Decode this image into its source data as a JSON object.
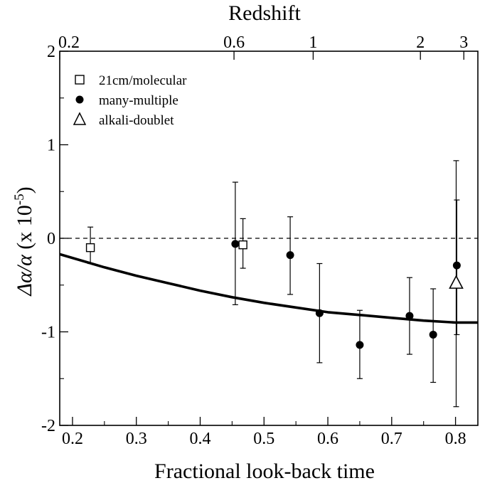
{
  "chart_data": {
    "type": "scatter",
    "title": "",
    "xlabel": "Fractional look-back time",
    "ylabel": "Δα/α (x 10⁻⁵)",
    "ylabel_parts": {
      "delta_alpha": "Δα/α",
      "scale": "(x 10",
      "exponent": "-5",
      "close": ")"
    },
    "top_axis_label": "Redshift",
    "xlim": [
      0.18,
      0.835
    ],
    "ylim": [
      -2,
      2
    ],
    "x_ticks": [
      0.2,
      0.3,
      0.4,
      0.5,
      0.6,
      0.7,
      0.8
    ],
    "x_tick_labels": [
      "0.2",
      "0.3",
      "0.4",
      "0.5",
      "0.6",
      "0.7",
      "0.8"
    ],
    "y_ticks": [
      -2,
      -1,
      0,
      1,
      2
    ],
    "y_tick_labels": [
      "-2",
      "-1",
      "0",
      "1",
      "2"
    ],
    "top_ticks": [
      {
        "label": "0.2",
        "x": 0.18
      },
      {
        "label": "0.6",
        "x": 0.453
      },
      {
        "label": "1",
        "x": 0.577
      },
      {
        "label": "2",
        "x": 0.745
      },
      {
        "label": "3",
        "x": 0.813
      }
    ],
    "zero_line": {
      "y": 0,
      "style": "dashed"
    },
    "grid": false,
    "legend_position": "top-left",
    "series": [
      {
        "name": "21cm/molecular",
        "marker": "open-square",
        "points": [
          {
            "x": 0.228,
            "y": -0.1,
            "yerr_low": -0.27,
            "yerr_high": 0.12
          },
          {
            "x": 0.467,
            "y": -0.07,
            "yerr_low": -0.32,
            "yerr_high": 0.21
          }
        ]
      },
      {
        "name": "many-multiple",
        "marker": "filled-circle",
        "points": [
          {
            "x": 0.455,
            "y": -0.06,
            "yerr_low": -0.71,
            "yerr_high": 0.6
          },
          {
            "x": 0.541,
            "y": -0.18,
            "yerr_low": -0.6,
            "yerr_high": 0.23
          },
          {
            "x": 0.587,
            "y": -0.8,
            "yerr_low": -1.33,
            "yerr_high": -0.27
          },
          {
            "x": 0.65,
            "y": -1.14,
            "yerr_low": -1.5,
            "yerr_high": -0.77
          },
          {
            "x": 0.728,
            "y": -0.83,
            "yerr_low": -1.24,
            "yerr_high": -0.42
          },
          {
            "x": 0.765,
            "y": -1.03,
            "yerr_low": -1.54,
            "yerr_high": -0.54
          },
          {
            "x": 0.802,
            "y": -0.29,
            "yerr_low": -1.03,
            "yerr_high": 0.41
          }
        ]
      },
      {
        "name": "alkali-doublet",
        "marker": "open-triangle",
        "points": [
          {
            "x": 0.801,
            "y": -0.48,
            "yerr_low": -1.8,
            "yerr_high": 0.83
          }
        ]
      }
    ],
    "curve": {
      "style": "thick-solid",
      "x": [
        0.18,
        0.25,
        0.3,
        0.35,
        0.4,
        0.45,
        0.5,
        0.55,
        0.6,
        0.65,
        0.7,
        0.75,
        0.8,
        0.835
      ],
      "y": [
        -0.17,
        -0.31,
        -0.4,
        -0.48,
        -0.56,
        -0.63,
        -0.69,
        -0.74,
        -0.79,
        -0.82,
        -0.85,
        -0.88,
        -0.9,
        -0.9
      ]
    },
    "colors": {
      "axis": "#000000",
      "marker": "#000000",
      "background": "#ffffff"
    }
  }
}
